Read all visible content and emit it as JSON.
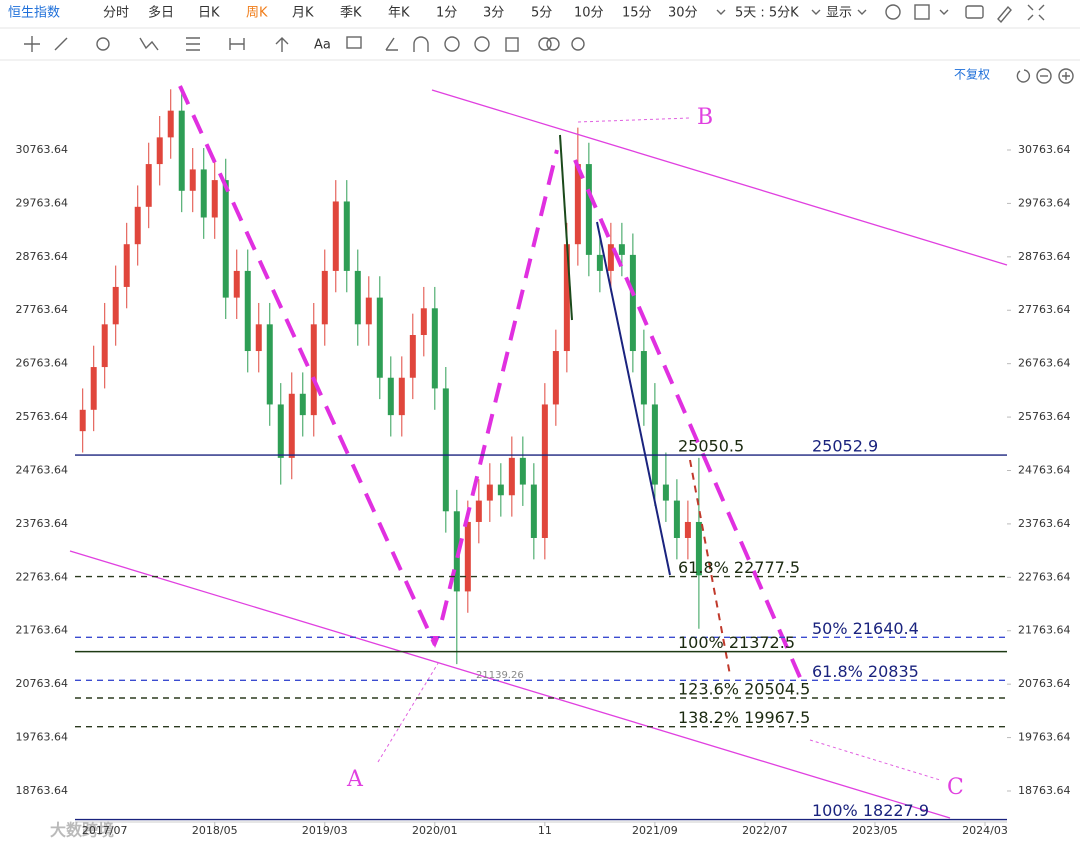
{
  "toolbar": {
    "title": "恒生指数",
    "periods": [
      "分时",
      "多日",
      "日K",
      "周K",
      "月K",
      "季K",
      "年K",
      "1分",
      "3分",
      "5分",
      "10分",
      "15分",
      "30分"
    ],
    "active_index": 3,
    "multi_day": "5天 : 5分K",
    "display": "显示",
    "text_tool": "Aa",
    "adjust": "不复权"
  },
  "watermark": "大数跨境",
  "chart_data": {
    "type": "candlestick",
    "x": [
      4,
      5,
      6,
      7,
      8,
      9,
      10,
      11,
      12,
      13,
      14,
      15,
      16,
      17,
      18,
      19,
      20,
      21,
      22,
      23,
      24,
      25,
      26,
      27,
      28,
      29,
      30,
      31,
      32,
      33,
      34,
      35,
      36,
      37,
      38,
      39,
      40,
      41,
      42,
      43,
      44,
      45,
      46,
      47,
      48,
      49,
      50,
      51,
      52,
      53,
      54,
      55,
      56,
      57,
      58,
      59,
      60
    ],
    "candles": [
      [
        25500,
        26300,
        25100,
        25900
      ],
      [
        25900,
        27100,
        25500,
        26700
      ],
      [
        26700,
        27900,
        26300,
        27500
      ],
      [
        27500,
        28600,
        27100,
        28200
      ],
      [
        28200,
        29400,
        27800,
        29000
      ],
      [
        29000,
        30100,
        28600,
        29700
      ],
      [
        29700,
        30900,
        29300,
        30500
      ],
      [
        30500,
        31400,
        30100,
        31000
      ],
      [
        31000,
        31900,
        30600,
        31500
      ],
      [
        31500,
        31900,
        29600,
        30000
      ],
      [
        30000,
        30800,
        29600,
        30400
      ],
      [
        30400,
        30800,
        29100,
        29500
      ],
      [
        29500,
        30600,
        29100,
        30200
      ],
      [
        30200,
        30600,
        27600,
        28000
      ],
      [
        28000,
        28900,
        27600,
        28500
      ],
      [
        28500,
        28900,
        26600,
        27000
      ],
      [
        27000,
        27900,
        26600,
        27500
      ],
      [
        27500,
        27900,
        25600,
        26000
      ],
      [
        26000,
        26400,
        24500,
        25000
      ],
      [
        25000,
        26600,
        24600,
        26200
      ],
      [
        26200,
        26600,
        25400,
        25800
      ],
      [
        25800,
        27900,
        25400,
        27500
      ],
      [
        27500,
        28900,
        27100,
        28500
      ],
      [
        28500,
        30200,
        28100,
        29800
      ],
      [
        29800,
        30200,
        28100,
        28500
      ],
      [
        28500,
        28900,
        27100,
        27500
      ],
      [
        27500,
        28400,
        27100,
        28000
      ],
      [
        28000,
        28400,
        26100,
        26500
      ],
      [
        26500,
        26900,
        25400,
        25800
      ],
      [
        25800,
        26900,
        25400,
        26500
      ],
      [
        26500,
        27700,
        26100,
        27300
      ],
      [
        27300,
        28200,
        26900,
        27800
      ],
      [
        27800,
        28200,
        25900,
        26300
      ],
      [
        26300,
        26700,
        23600,
        24000
      ],
      [
        24000,
        24400,
        21139.26,
        22500
      ],
      [
        22500,
        24200,
        22100,
        23800
      ],
      [
        23800,
        24600,
        23400,
        24200
      ],
      [
        24200,
        24900,
        23800,
        24500
      ],
      [
        24500,
        24900,
        23900,
        24300
      ],
      [
        24300,
        25400,
        23900,
        25000
      ],
      [
        25000,
        25400,
        24100,
        24500
      ],
      [
        24500,
        24900,
        23100,
        23500
      ],
      [
        23500,
        26400,
        23100,
        26000
      ],
      [
        26000,
        27400,
        25600,
        27000
      ],
      [
        27000,
        29400,
        26600,
        29000
      ],
      [
        29000,
        31183,
        28600,
        30500
      ],
      [
        30500,
        30900,
        28400,
        28800
      ],
      [
        28800,
        29200,
        28100,
        28500
      ],
      [
        28500,
        29400,
        28100,
        29000
      ],
      [
        29000,
        29400,
        28400,
        28800
      ],
      [
        28800,
        29200,
        26600,
        27000
      ],
      [
        27000,
        27400,
        25600,
        26000
      ],
      [
        26000,
        26400,
        24100,
        24500
      ],
      [
        24500,
        25100,
        23800,
        24200
      ],
      [
        24200,
        24600,
        23100,
        23500
      ],
      [
        23500,
        24200,
        23100,
        23800
      ],
      [
        23800,
        25000,
        21800,
        22800
      ]
    ],
    "up_color": "#e0463c",
    "down_color": "#2e9e55",
    "xlim": [
      3.3,
      88
    ],
    "xticks": [
      {
        "value": 6,
        "label": "2017/07"
      },
      {
        "value": 16,
        "label": "2018/05"
      },
      {
        "value": 26,
        "label": "2019/03"
      },
      {
        "value": 36,
        "label": "2020/01"
      },
      {
        "value": 46,
        "label": "11"
      },
      {
        "value": 56,
        "label": "2021/09"
      },
      {
        "value": 66,
        "label": "2022/07"
      },
      {
        "value": 76,
        "label": "2023/05"
      },
      {
        "value": 86,
        "label": "2024/03"
      }
    ],
    "ylim": [
      18183,
      32411
    ],
    "yticks": [
      30763.64,
      29763.64,
      28763.64,
      27763.64,
      26763.64,
      25763.64,
      24763.64,
      23763.64,
      22763.64,
      21763.64,
      20763.64,
      19763.64,
      18763.64
    ],
    "low_label": "21139.26",
    "levels": [
      {
        "value": 25052.9,
        "color": "#1a237e",
        "dashed": false,
        "labels": [
          "25050.5",
          "25052.9"
        ],
        "label_colors": [
          "#1b2a10",
          "#1a237e"
        ]
      },
      {
        "value": 22777.5,
        "color": "#2b3a1f",
        "dashed": true,
        "labels": [
          "61.8% 22777.5"
        ],
        "label_colors": [
          "#1b2a10"
        ]
      },
      {
        "value": 21640.4,
        "color": "#3b4bd0",
        "dashed": true,
        "labels": [
          "50% 21640.4"
        ],
        "label_colors": [
          "#1a237e"
        ]
      },
      {
        "value": 21372.5,
        "color": "#1e3a14",
        "dashed": false,
        "labels": [
          "100% 21372.5"
        ],
        "label_colors": [
          "#1b2a10"
        ]
      },
      {
        "value": 20835,
        "color": "#3b4bd0",
        "dashed": true,
        "labels": [
          "61.8% 20835"
        ],
        "label_colors": [
          "#1a237e"
        ]
      },
      {
        "value": 20504.5,
        "color": "#2b3a1f",
        "dashed": true,
        "labels": [
          "123.6% 20504.5"
        ],
        "label_colors": [
          "#1b2a10"
        ]
      },
      {
        "value": 19967.5,
        "color": "#2b3a1f",
        "dashed": true,
        "labels": [
          "138.2% 19967.5"
        ],
        "label_colors": [
          "#1b2a10"
        ]
      },
      {
        "value": 18227.9,
        "color": "#1a237e",
        "dashed": false,
        "labels": [
          "100% 18227.9"
        ],
        "label_colors": [
          "#1a237e"
        ]
      }
    ],
    "wave_labels": [
      "A",
      "B",
      "C"
    ]
  }
}
